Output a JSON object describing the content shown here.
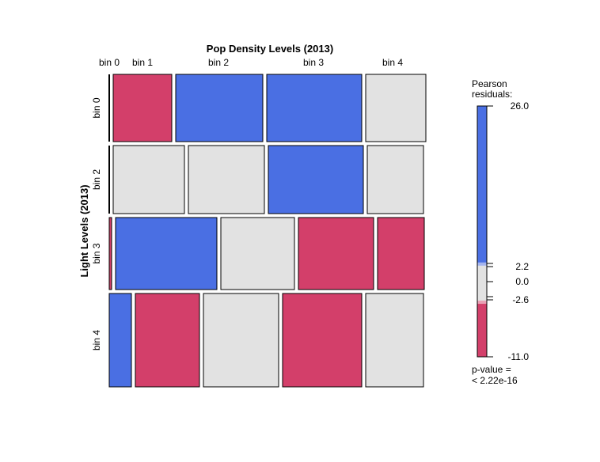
{
  "chart_data": {
    "type": "mosaic",
    "title": "Pop Density Levels (2013)",
    "xlabel": "Pop Density Levels (2013)",
    "ylabel": "Light Levels (2013)",
    "x_levels": [
      "bin 0",
      "bin 1",
      "bin 2",
      "bin 3",
      "bin 4"
    ],
    "y_levels": [
      "bin 0",
      "bin 2",
      "bin 3",
      "bin 4"
    ],
    "row_heights": [
      85,
      86,
      91,
      118
    ],
    "cells": [
      {
        "row": "bin 0",
        "widths": [
          0,
          74,
          110,
          120,
          76
        ],
        "shading": [
          "none",
          "negative",
          "positive",
          "positive",
          "neutral"
        ]
      },
      {
        "row": "bin 2",
        "widths": [
          0,
          90,
          96,
          120,
          71
        ],
        "shading": [
          "none",
          "neutral",
          "neutral",
          "positive",
          "neutral"
        ]
      },
      {
        "row": "bin 3",
        "widths": [
          3,
          128,
          93,
          95,
          59
        ],
        "shading": [
          "negative",
          "positive",
          "neutral",
          "negative",
          "negative"
        ]
      },
      {
        "row": "bin 4",
        "widths": [
          28,
          81,
          95,
          100,
          73
        ],
        "shading": [
          "positive",
          "negative",
          "neutral",
          "negative",
          "neutral"
        ]
      }
    ],
    "legend": {
      "title_line1": "Pearson",
      "title_line2": "residuals:",
      "ticks": [
        "26.0",
        "2.2",
        "0.0",
        "-2.6",
        "-11.0"
      ],
      "tick_values": [
        26.0,
        2.2,
        0.0,
        -2.6,
        -11.0
      ],
      "pvalue_line1": "p-value =",
      "pvalue_line2": "< 2.22e-16"
    },
    "colors": {
      "positive": "#4A6FE3",
      "neutral": "#E2E2E2",
      "negative": "#D33F6A",
      "border": "#000000"
    }
  }
}
